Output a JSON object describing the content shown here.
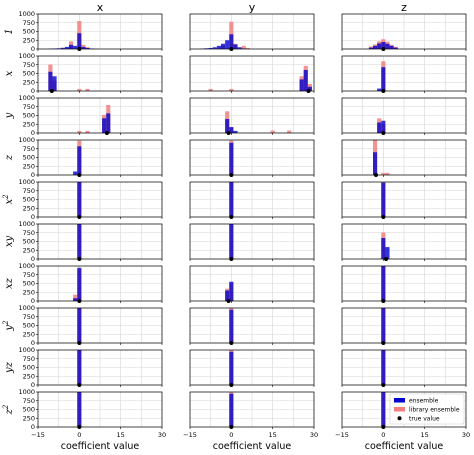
{
  "chart_data": {
    "type": "histogram-grid",
    "columns": [
      "x",
      "y",
      "z"
    ],
    "rows": [
      "1",
      "x",
      "y",
      "z",
      "x2",
      "xy",
      "xz",
      "y2",
      "yz",
      "z2"
    ],
    "row_labels": [
      {
        "base": "1",
        "sup": ""
      },
      {
        "base": "x",
        "sup": ""
      },
      {
        "base": "y",
        "sup": ""
      },
      {
        "base": "z",
        "sup": ""
      },
      {
        "base": "x",
        "sup": "2"
      },
      {
        "base": "xy",
        "sup": ""
      },
      {
        "base": "xz",
        "sup": ""
      },
      {
        "base": "y",
        "sup": "2"
      },
      {
        "base": "yz",
        "sup": ""
      },
      {
        "base": "z",
        "sup": "2"
      }
    ],
    "xlabel": "coefficient value",
    "xlim": [
      -15,
      30
    ],
    "xticks": [
      "−15",
      "0",
      "15",
      "30"
    ],
    "xtick_values": [
      -15,
      0,
      15,
      30
    ],
    "xgrid_values": [
      -15,
      -7.5,
      0,
      7.5,
      15,
      22.5,
      30
    ],
    "ylim": [
      0,
      1000
    ],
    "yticks": [
      "0",
      "250",
      "500",
      "750",
      "1000"
    ],
    "ytick_values": [
      0,
      250,
      500,
      750,
      1000
    ],
    "grid": true,
    "legend": {
      "location": "bottom-right panel (row z2, column z)",
      "entries": [
        "ensemble",
        "library ensemble",
        "true value"
      ]
    },
    "series_colors": {
      "ensemble": "#0000cc",
      "library ensemble": "#f08080",
      "true value": "#000000"
    },
    "panels": [
      [
        {
          "true": 0,
          "ens": [
            [
              -10.5,
              10
            ],
            [
              -9,
              15
            ],
            [
              -7.5,
              20
            ],
            [
              -6,
              35
            ],
            [
              -4.5,
              60
            ],
            [
              -3,
              120
            ],
            [
              -1.5,
              90
            ],
            [
              0,
              450
            ],
            [
              1.5,
              60
            ],
            [
              3,
              30
            ],
            [
              4.5,
              15
            ],
            [
              6,
              5
            ]
          ],
          "lib": [
            [
              -3,
              220
            ],
            [
              0,
              800
            ],
            [
              1.5,
              120
            ],
            [
              3,
              50
            ]
          ]
        },
        {
          "true": 0,
          "ens": [
            [
              -10.5,
              10
            ],
            [
              -9,
              20
            ],
            [
              -7.5,
              30
            ],
            [
              -6,
              50
            ],
            [
              -4.5,
              90
            ],
            [
              -3,
              150
            ],
            [
              -1.5,
              250
            ],
            [
              0,
              420
            ],
            [
              1.5,
              130
            ],
            [
              3,
              50
            ],
            [
              4.5,
              15
            ]
          ],
          "lib": [
            [
              -3,
              100
            ],
            [
              0,
              780
            ],
            [
              1.5,
              150
            ],
            [
              4.5,
              90
            ],
            [
              6,
              30
            ]
          ]
        },
        {
          "true": 0,
          "ens": [
            [
              -4.5,
              40
            ],
            [
              -3,
              90
            ],
            [
              -1.5,
              160
            ],
            [
              0,
              200
            ],
            [
              1.5,
              150
            ],
            [
              3,
              90
            ],
            [
              4.5,
              40
            ]
          ],
          "lib": [
            [
              -4.5,
              70
            ],
            [
              -3,
              130
            ],
            [
              -1.5,
              220
            ],
            [
              0,
              280
            ],
            [
              1.5,
              210
            ],
            [
              3,
              120
            ],
            [
              4.5,
              60
            ]
          ]
        }
      ],
      [
        {
          "true": -10,
          "ens": [
            [
              -10.5,
              550
            ],
            [
              -9,
              420
            ]
          ],
          "lib": [
            [
              -10.5,
              760
            ],
            [
              -9,
              300
            ],
            [
              0,
              60
            ],
            [
              3,
              60
            ]
          ]
        },
        {
          "true": 28,
          "ens": [
            [
              25.5,
              330
            ],
            [
              27,
              600
            ],
            [
              28.5,
              120
            ]
          ],
          "lib": [
            [
              -7.5,
              60
            ],
            [
              0,
              60
            ],
            [
              25.5,
              420
            ],
            [
              27,
              720
            ],
            [
              28.5,
              200
            ]
          ]
        },
        {
          "true": 0,
          "ens": [
            [
              -1.5,
              70
            ],
            [
              0,
              680
            ]
          ],
          "lib": [
            [
              0,
              850
            ]
          ]
        }
      ],
      [
        {
          "true": 10,
          "ens": [
            [
              9,
              420
            ],
            [
              10.5,
              560
            ]
          ],
          "lib": [
            [
              0,
              60
            ],
            [
              3,
              60
            ],
            [
              9,
              520
            ],
            [
              10.5,
              800
            ]
          ]
        },
        {
          "true": -1,
          "ens": [
            [
              -1.5,
              400
            ],
            [
              0,
              170
            ],
            [
              1.5,
              60
            ]
          ],
          "lib": [
            [
              -1.5,
              620
            ],
            [
              0,
              150
            ],
            [
              15,
              70
            ],
            [
              21,
              70
            ]
          ]
        },
        {
          "true": 0,
          "ens": [
            [
              -1.5,
              300
            ],
            [
              0,
              350
            ]
          ],
          "lib": [
            [
              -1.5,
              420
            ],
            [
              0,
              260
            ]
          ]
        }
      ],
      [
        {
          "true": 0,
          "ens": [
            [
              -1.5,
              100
            ],
            [
              0,
              820
            ]
          ],
          "lib": [
            [
              0,
              980
            ]
          ]
        },
        {
          "true": 0,
          "ens": [
            [
              0,
              920
            ]
          ],
          "lib": [
            [
              0,
              980
            ]
          ]
        },
        {
          "true": -2.67,
          "ens": [
            [
              -3,
              650
            ]
          ],
          "lib": [
            [
              -3,
              1000
            ],
            [
              0,
              60
            ],
            [
              1.5,
              60
            ]
          ]
        }
      ],
      [
        {
          "true": 0,
          "ens": [
            [
              0,
              1000
            ]
          ],
          "lib": [
            [
              0,
              1000
            ]
          ]
        },
        {
          "true": 0,
          "ens": [
            [
              0,
              1000
            ]
          ],
          "lib": [
            [
              0,
              1000
            ]
          ]
        },
        {
          "true": 0,
          "ens": [
            [
              0,
              980
            ]
          ],
          "lib": [
            [
              0,
              1000
            ]
          ]
        }
      ],
      [
        {
          "true": 0,
          "ens": [
            [
              0,
              1000
            ]
          ],
          "lib": [
            [
              0,
              1000
            ]
          ]
        },
        {
          "true": 0,
          "ens": [
            [
              0,
              1000
            ]
          ],
          "lib": [
            [
              0,
              1000
            ]
          ]
        },
        {
          "true": 1,
          "ens": [
            [
              0,
              600
            ],
            [
              1.5,
              340
            ]
          ],
          "lib": [
            [
              0,
              760
            ]
          ]
        }
      ],
      [
        {
          "true": 0,
          "ens": [
            [
              -1.5,
              80
            ],
            [
              0,
              950
            ]
          ],
          "lib": [
            [
              -1.5,
              180
            ],
            [
              0,
              900
            ]
          ]
        },
        {
          "true": -1,
          "ens": [
            [
              -1.5,
              300
            ],
            [
              0,
              550
            ]
          ],
          "lib": [
            [
              -1.5,
              350
            ],
            [
              0,
              520
            ]
          ]
        },
        {
          "true": 0,
          "ens": [
            [
              0,
              1000
            ]
          ],
          "lib": [
            [
              0,
              1000
            ]
          ]
        }
      ],
      [
        {
          "true": 0,
          "ens": [
            [
              0,
              1000
            ]
          ],
          "lib": [
            [
              0,
              1000
            ]
          ]
        },
        {
          "true": 0,
          "ens": [
            [
              0,
              950
            ]
          ],
          "lib": [
            [
              0,
              1000
            ]
          ]
        },
        {
          "true": 0,
          "ens": [
            [
              0,
              1000
            ]
          ],
          "lib": [
            [
              0,
              1000
            ]
          ]
        }
      ],
      [
        {
          "true": 0,
          "ens": [
            [
              0,
              1000
            ]
          ],
          "lib": [
            [
              0,
              1000
            ]
          ]
        },
        {
          "true": 0,
          "ens": [
            [
              0,
              950
            ]
          ],
          "lib": [
            [
              0,
              1000
            ]
          ]
        },
        {
          "true": 0,
          "ens": [
            [
              0,
              1000
            ]
          ],
          "lib": [
            [
              0,
              1000
            ]
          ]
        }
      ],
      [
        {
          "true": 0,
          "ens": [
            [
              0,
              1000
            ]
          ],
          "lib": [
            [
              0,
              1000
            ]
          ]
        },
        {
          "true": 0,
          "ens": [
            [
              0,
              950
            ]
          ],
          "lib": [
            [
              0,
              1000
            ]
          ]
        },
        {
          "true": 0,
          "ens": [
            [
              0,
              1000
            ]
          ],
          "lib": [
            [
              0,
              1000
            ]
          ]
        }
      ]
    ]
  }
}
